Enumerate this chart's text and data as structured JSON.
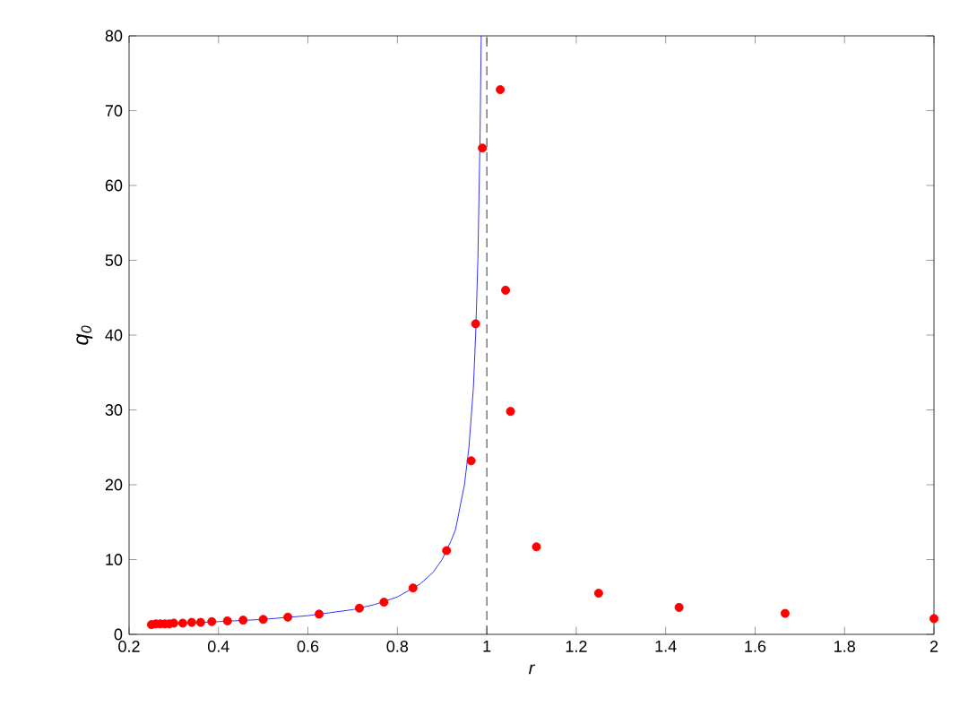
{
  "chart_data": {
    "type": "scatter",
    "xlabel": "r",
    "ylabel": "q$_{0}$",
    "xlim": [
      0.2,
      2
    ],
    "xticks": [
      0.2,
      0.4,
      0.6,
      0.8,
      1,
      1.2,
      1.4,
      1.6,
      1.8,
      2
    ],
    "ylim": [
      0,
      80
    ],
    "yticks": [
      0,
      10,
      20,
      30,
      40,
      50,
      60,
      70,
      80
    ],
    "grid": false,
    "ref_lines": [
      {
        "axis": "x",
        "value": 1,
        "color": "#000000",
        "line_style": "dashed"
      }
    ],
    "series": [
      {
        "type": "line",
        "color": "#0000ff",
        "marker": "none",
        "line_style": "solid",
        "x": [
          0.25,
          0.4,
          0.5,
          0.6,
          0.7,
          0.75,
          0.8,
          0.85,
          0.88,
          0.9,
          0.92,
          0.93,
          0.94,
          0.95,
          0.96,
          0.965,
          0.97,
          0.975,
          0.98,
          0.985,
          0.9875
        ],
        "values": [
          1.3,
          1.7,
          2,
          2.5,
          3.3,
          4,
          5,
          6.7,
          8.3,
          10,
          12.5,
          14,
          17,
          20,
          25,
          29,
          33,
          40,
          50,
          67,
          80
        ]
      },
      {
        "color": "#ff0000",
        "marker": "circle",
        "x": [
          0.25,
          0.26,
          0.27,
          0.28,
          0.29,
          0.3,
          0.32,
          0.34,
          0.36,
          0.385,
          0.42,
          0.455,
          0.5,
          0.555,
          0.625,
          0.715,
          0.77,
          0.835,
          0.91,
          0.965,
          0.975,
          0.99,
          1.03,
          1.042,
          1.053,
          1.111,
          1.25,
          1.43,
          1.667,
          2
        ],
        "values": [
          1.3,
          1.4,
          1.4,
          1.4,
          1.4,
          1.5,
          1.5,
          1.6,
          1.6,
          1.7,
          1.8,
          1.9,
          2.0,
          2.3,
          2.7,
          3.5,
          4.3,
          6.2,
          11.2,
          23.2,
          41.5,
          65,
          72.8,
          46,
          29.8,
          11.7,
          5.5,
          3.6,
          2.8,
          2.1
        ]
      }
    ]
  }
}
